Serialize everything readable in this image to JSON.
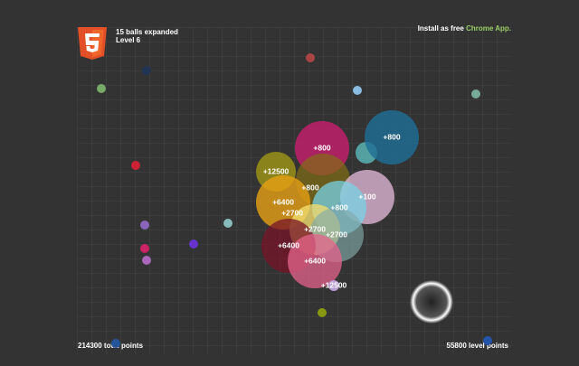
{
  "header": {
    "balls_expanded": "15 balls expanded",
    "level": "Level 6"
  },
  "install": {
    "text": "Install as free",
    "link": "Chrome App."
  },
  "footer": {
    "total": "214300 total points",
    "level": "55800 level points"
  },
  "ball_labels": [
    "+800",
    "+800",
    "+12500",
    "+800",
    "+100",
    "+6400",
    "+2700",
    "+800",
    "+2700",
    "+2700",
    "+6400",
    "+6400",
    "+12500"
  ]
}
